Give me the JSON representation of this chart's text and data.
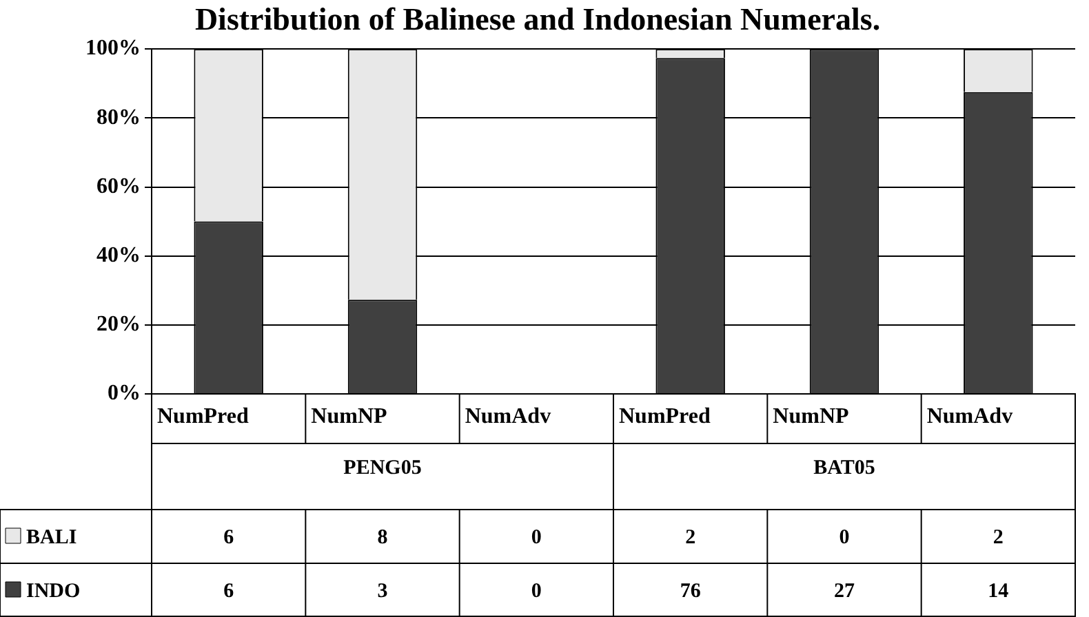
{
  "chart_data": {
    "type": "bar",
    "title": "Distribution of Balinese and Indonesian Numerals.",
    "categories": [
      "NumPred",
      "NumNP",
      "NumAdv",
      "NumPred",
      "NumNP",
      "NumAdv"
    ],
    "stacked": true,
    "series": [
      {
        "name": "INDO",
        "color": "#404040",
        "values": [
          50,
          27.3,
          0,
          97.4,
          100,
          87.5
        ]
      },
      {
        "name": "BALI",
        "color": "#e8e8e8",
        "values": [
          50,
          72.7,
          0,
          2.6,
          0,
          12.5
        ]
      }
    ],
    "ylim": [
      0,
      100
    ],
    "yticks": [
      {
        "value": 0,
        "label": "0%"
      },
      {
        "value": 20,
        "label": "20%"
      },
      {
        "value": 40,
        "label": "40%"
      },
      {
        "value": 60,
        "label": "60%"
      },
      {
        "value": 80,
        "label": "80%"
      },
      {
        "value": 100,
        "label": "100%"
      }
    ],
    "grid": "y",
    "legend": "bottom",
    "annotations": [
      "PENG05",
      "BAT05",
      "6",
      "8",
      "0",
      "2",
      "0",
      "2",
      "6",
      "3",
      "0",
      "76",
      "27",
      "14"
    ]
  }
}
